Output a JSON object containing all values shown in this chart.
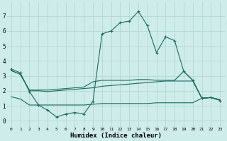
{
  "xlabel": "Humidex (Indice chaleur)",
  "background_color": "#ceecea",
  "grid_color": "#aed4d0",
  "line_color": "#1a6b5e",
  "x_ticks": [
    0,
    1,
    2,
    3,
    4,
    5,
    6,
    7,
    8,
    9,
    10,
    11,
    12,
    13,
    14,
    15,
    16,
    17,
    18,
    19,
    20,
    21,
    22,
    23
  ],
  "y_ticks": [
    0,
    1,
    2,
    3,
    4,
    5,
    6,
    7
  ],
  "ylim": [
    -0.4,
    7.9
  ],
  "xlim": [
    -0.5,
    23.5
  ],
  "series1_x": [
    0,
    1,
    2,
    3,
    4,
    5,
    6,
    7,
    8,
    9,
    10,
    11,
    12,
    13,
    14,
    15,
    16,
    17,
    18,
    19,
    20,
    21,
    22,
    23
  ],
  "series1_y": [
    3.45,
    3.2,
    1.95,
    1.05,
    0.7,
    0.25,
    0.45,
    0.55,
    0.45,
    1.3,
    5.8,
    6.0,
    6.55,
    6.65,
    7.3,
    6.35,
    4.55,
    5.6,
    5.35,
    3.3,
    2.7,
    1.5,
    1.55,
    1.35
  ],
  "series2_x": [
    0,
    1,
    2,
    3,
    4,
    5,
    6,
    7,
    8,
    9,
    10,
    11,
    12,
    13,
    14,
    15,
    16,
    17,
    18,
    19,
    20,
    21,
    22,
    23
  ],
  "series2_y": [
    3.35,
    3.1,
    2.0,
    2.0,
    1.95,
    2.0,
    2.05,
    2.1,
    2.15,
    2.2,
    2.3,
    2.35,
    2.4,
    2.45,
    2.5,
    2.55,
    2.6,
    2.65,
    2.65,
    2.65,
    2.65,
    1.5,
    1.55,
    1.4
  ],
  "series3_x": [
    0,
    1,
    2,
    3,
    4,
    5,
    6,
    7,
    8,
    9,
    10,
    11,
    12,
    13,
    14,
    15,
    16,
    17,
    18,
    19,
    20,
    21,
    22,
    23
  ],
  "series3_y": [
    3.35,
    3.1,
    2.05,
    2.05,
    2.05,
    2.1,
    2.15,
    2.2,
    2.25,
    2.6,
    2.7,
    2.7,
    2.7,
    2.7,
    2.75,
    2.75,
    2.7,
    2.7,
    2.7,
    3.3,
    2.7,
    1.5,
    1.55,
    1.4
  ],
  "series4_x": [
    0,
    1,
    2,
    3,
    4,
    5,
    6,
    7,
    8,
    9,
    10,
    11,
    12,
    13,
    14,
    15,
    16,
    17,
    18,
    19,
    20,
    21,
    22,
    23
  ],
  "series4_y": [
    1.6,
    1.45,
    1.05,
    1.05,
    1.05,
    1.05,
    1.05,
    1.05,
    1.05,
    1.1,
    1.15,
    1.15,
    1.15,
    1.15,
    1.15,
    1.15,
    1.2,
    1.2,
    1.2,
    1.2,
    1.2,
    1.5,
    1.55,
    1.4
  ]
}
